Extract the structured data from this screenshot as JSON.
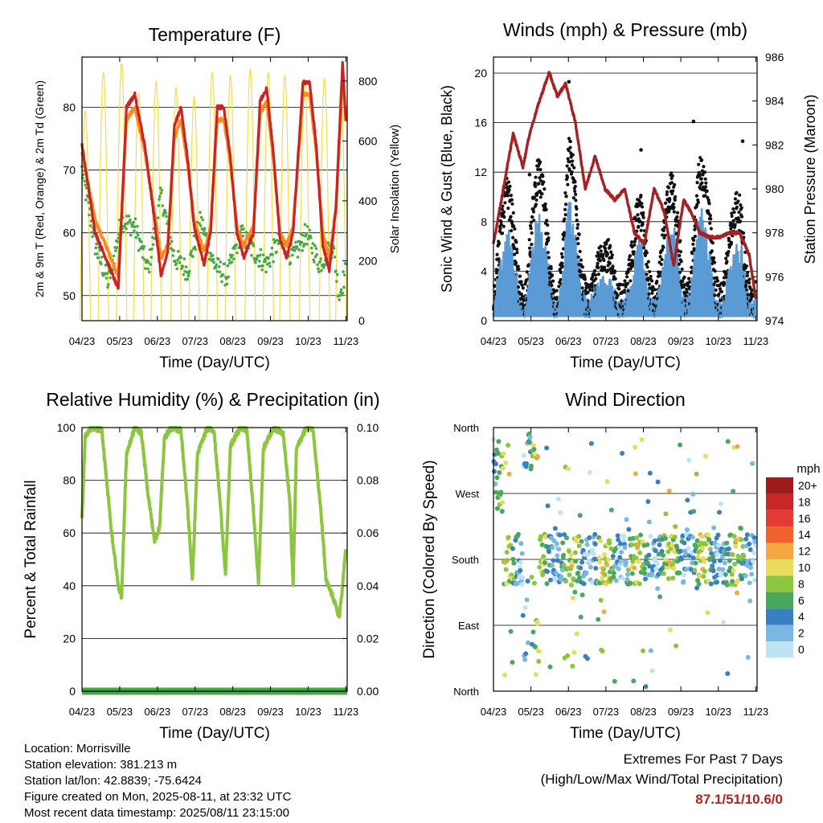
{
  "chart_data": [
    {
      "type": "line",
      "title": "Temperature (F)",
      "xlabel": "Time (Day/UTC)",
      "ylabel_left": "2m & 9m T (Red, Orange) & 2m Td (Green)",
      "ylabel_right": "Solar Insolation (Yellow)",
      "x_ticks": [
        "04/23",
        "05/23",
        "06/23",
        "07/23",
        "08/23",
        "09/23",
        "10/23",
        "11/23"
      ],
      "ylim_left": [
        46,
        88
      ],
      "yticks_left": [
        50,
        60,
        70,
        80
      ],
      "ylim_right": [
        0,
        880
      ],
      "yticks_right": [
        0,
        200,
        400,
        600,
        800
      ],
      "grid": true,
      "series": [
        {
          "role": "t2m",
          "color": "#cc2222",
          "x": [
            0,
            0.4,
            0.8,
            1.1,
            1.35,
            1.6,
            1.9,
            2.2,
            2.4,
            2.6,
            2.8,
            3.0,
            3.2,
            3.4,
            3.7,
            3.9,
            4.1,
            4.3,
            4.5,
            4.7,
            4.9,
            5.2,
            5.4,
            5.6,
            5.8,
            6.0,
            6.2,
            6.4,
            6.7,
            6.9,
            7.1,
            7.3,
            7.5,
            7.7,
            7.9,
            8.0
          ],
          "y": [
            74,
            60,
            55,
            51,
            80,
            82,
            74,
            62,
            53,
            57,
            77,
            80,
            72,
            61,
            55,
            60,
            80,
            80,
            72,
            60,
            56,
            60,
            81,
            83,
            73,
            59,
            56,
            60,
            84,
            84,
            74,
            58,
            54,
            64,
            87,
            78
          ]
        },
        {
          "role": "t9m",
          "color": "#ff8c1a",
          "x": [
            0,
            0.4,
            0.8,
            1.1,
            1.35,
            1.6,
            1.9,
            2.2,
            2.4,
            2.6,
            2.8,
            3.0,
            3.2,
            3.4,
            3.7,
            3.9,
            4.1,
            4.3,
            4.5,
            4.7,
            4.9,
            5.2,
            5.4,
            5.6,
            5.8,
            6.0,
            6.2,
            6.4,
            6.7,
            6.9,
            7.1,
            7.3,
            7.5,
            7.7,
            7.9,
            8.0
          ],
          "y": [
            73,
            62,
            57,
            53,
            78,
            80,
            73,
            63,
            56,
            58,
            75,
            78,
            71,
            62,
            57,
            61,
            78,
            78,
            71,
            61,
            58,
            61,
            79,
            81,
            72,
            60,
            58,
            61,
            82,
            82,
            73,
            60,
            56,
            64,
            85,
            78
          ]
        },
        {
          "role": "td",
          "color": "#44aa44",
          "x": [
            0,
            0.4,
            0.8,
            1.2,
            1.6,
            2.0,
            2.4,
            2.8,
            3.2,
            3.6,
            4.0,
            4.4,
            4.8,
            5.2,
            5.6,
            6.0,
            6.4,
            6.8,
            7.2,
            7.6,
            7.8,
            8.0
          ],
          "y": [
            70,
            58,
            52,
            62,
            61,
            54,
            66,
            56,
            54,
            62,
            55,
            53,
            60,
            57,
            55,
            59,
            56,
            60,
            55,
            58,
            50,
            54
          ]
        },
        {
          "role": "solar",
          "color": "#f5dc4a",
          "peaks": [
            0.1,
            0.65,
            1.2,
            1.72,
            2.25,
            2.85,
            3.4,
            3.95,
            4.5,
            5.1,
            5.65,
            6.15,
            6.75,
            7.35,
            7.85
          ],
          "peak_values": [
            700,
            830,
            860,
            760,
            800,
            780,
            750,
            830,
            820,
            840,
            830,
            820,
            800,
            810,
            780
          ]
        }
      ]
    },
    {
      "type": "scatter",
      "title": "Winds (mph) & Pressure (mb)",
      "xlabel": "Time (Day/UTC)",
      "ylabel_left": "Sonic Wind & Gust (Blue, Black)",
      "ylabel_right": "Station Pressure (Maroon)",
      "x_ticks": [
        "04/23",
        "05/23",
        "06/23",
        "07/23",
        "08/23",
        "09/23",
        "10/23",
        "11/23"
      ],
      "ylim_left": [
        0,
        21.3
      ],
      "yticks_left": [
        0,
        4,
        8,
        12,
        16,
        20
      ],
      "ylim_right": [
        974,
        986
      ],
      "yticks_right": [
        974,
        976,
        978,
        980,
        982,
        984,
        986
      ],
      "grid": true,
      "pressure": {
        "color": "#a52222",
        "x": [
          0,
          0.3,
          0.6,
          0.9,
          1.1,
          1.4,
          1.7,
          1.95,
          2.2,
          2.5,
          2.8,
          3.1,
          3.4,
          3.7,
          4.0,
          4.3,
          4.6,
          4.9,
          5.2,
          5.5,
          5.8,
          6.0,
          6.3,
          6.6,
          6.9,
          7.2,
          7.5,
          7.8,
          8.0
        ],
        "y": [
          977.5,
          980,
          982.5,
          981,
          982.5,
          984,
          985.3,
          984.2,
          984.8,
          983,
          980,
          981.5,
          980,
          979.5,
          980,
          978,
          977.5,
          980,
          979,
          976.5,
          979.5,
          979,
          978,
          977.8,
          977.8,
          978,
          978,
          977,
          975
        ]
      },
      "gust_color": "#111111",
      "wind_color": "#5b9bd5",
      "gust_peaks": [
        {
          "x": 1.1,
          "y": 11.8
        },
        {
          "x": 2.3,
          "y": 19.3
        },
        {
          "x": 4.5,
          "y": 13.8
        },
        {
          "x": 6.1,
          "y": 16.1
        },
        {
          "x": 7.6,
          "y": 14.5
        }
      ]
    },
    {
      "type": "line",
      "title": "Relative Humidity (%) & Precipitation (in)",
      "xlabel": "Time (Day/UTC)",
      "ylabel_left": "Percent & Total Rainfall",
      "x_ticks": [
        "04/23",
        "05/23",
        "06/23",
        "07/23",
        "08/23",
        "09/23",
        "10/23",
        "11/23"
      ],
      "ylim_left": [
        0,
        100
      ],
      "yticks_left": [
        0,
        20,
        40,
        60,
        80,
        100
      ],
      "ylim_right": [
        0,
        0.1
      ],
      "yticks_right_labels": [
        "0.00",
        "0.02",
        "0.04",
        "0.06",
        "0.08",
        "0.10"
      ],
      "grid": true,
      "rh": {
        "color": "#8cc63f",
        "x": [
          0,
          0.1,
          0.3,
          0.6,
          0.9,
          1.1,
          1.2,
          1.35,
          1.6,
          1.8,
          2.0,
          2.2,
          2.35,
          2.5,
          2.7,
          3.0,
          3.2,
          3.35,
          3.5,
          3.8,
          4.0,
          4.2,
          4.35,
          4.5,
          4.8,
          5.0,
          5.2,
          5.35,
          5.5,
          5.8,
          6.1,
          6.3,
          6.4,
          6.5,
          6.8,
          7.0,
          7.25,
          7.4,
          7.6,
          7.8,
          7.9,
          8.0
        ],
        "y": [
          66,
          97,
          100,
          99,
          60,
          40,
          36,
          90,
          100,
          98,
          75,
          57,
          62,
          96,
          100,
          99,
          70,
          42,
          90,
          100,
          99,
          70,
          44,
          93,
          100,
          99,
          68,
          41,
          92,
          100,
          98,
          72,
          40,
          92,
          100,
          100,
          67,
          42,
          36,
          28,
          40,
          55
        ]
      },
      "precip": {
        "color": "#44aa44",
        "total": 0
      }
    },
    {
      "type": "scatter",
      "title": "Wind Direction",
      "xlabel": "Time (Day/UTC)",
      "ylabel_left": "Direction (Colored By Speed)",
      "x_ticks": [
        "04/23",
        "05/23",
        "06/23",
        "07/23",
        "08/23",
        "09/23",
        "10/23",
        "11/23"
      ],
      "yticks_labels": [
        "North",
        "East",
        "South",
        "West",
        "North"
      ],
      "ylim": [
        0,
        360
      ],
      "grid": true,
      "legend": {
        "title": "mph",
        "position": "right",
        "labels": [
          "20+",
          "18",
          "16",
          "14",
          "12",
          "10",
          "8",
          "6",
          "4",
          "2",
          "0"
        ],
        "colors": [
          "#9e1b1b",
          "#c62828",
          "#e53935",
          "#f0622d",
          "#f5a742",
          "#e8dd5a",
          "#8cc63f",
          "#4aa85e",
          "#3a7fc1",
          "#7ab8e3",
          "#bde3f5"
        ]
      }
    }
  ],
  "footer": {
    "location": "Location: Morrisville",
    "elevation": "Station elevation: 381.213 m",
    "latlon": "Station lat/lon: 42.8839; -75.6424",
    "created": "Figure created on Mon, 2025-08-11, at 23:32 UTC",
    "recent": "Most recent data timestamp: 2025/08/11 23:15:00"
  },
  "extremes": {
    "title": "Extremes For Past 7 Days",
    "subtitle": "(High/Low/Max Wind/Total Precipitation)",
    "values": "87.1/51/10.6/0"
  }
}
